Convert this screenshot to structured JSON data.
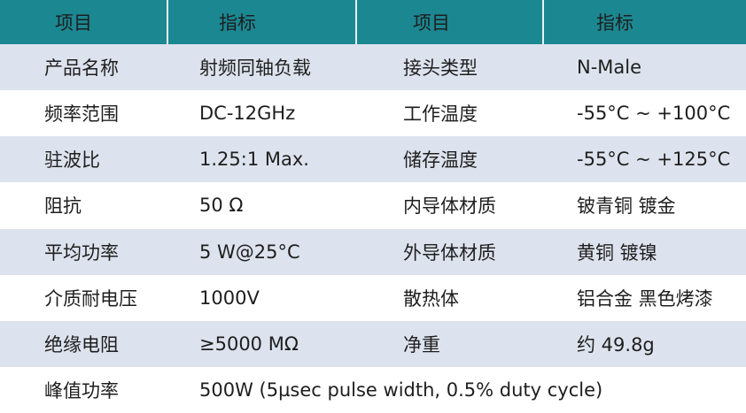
{
  "table": {
    "header": [
      "项目",
      "指标",
      "项目",
      "指标"
    ],
    "rows": [
      [
        "产品名称",
        "射频同轴负载",
        "接头类型",
        "N-Male"
      ],
      [
        "频率范围",
        "DC-12GHz",
        "工作温度",
        "-55°C ~ +100°C"
      ],
      [
        "驻波比",
        "1.25:1 Max.",
        "储存温度",
        "-55°C ~ +125°C"
      ],
      [
        "阻抗",
        "50 Ω",
        "内导体材质",
        "铍青铜 镀金"
      ],
      [
        "平均功率",
        "5 W@25°C",
        "外导体材质",
        "黄铜 镀镍"
      ],
      [
        "介质耐电压",
        "1000V",
        "散热体",
        "铝合金 黑色烤漆"
      ],
      [
        "绝缘电阻",
        "≥5000 MΩ",
        "净重",
        "约 49.8g"
      ],
      [
        "峰值功率",
        "500W (5µsec pulse width, 0.5% duty cycle)"
      ]
    ]
  }
}
